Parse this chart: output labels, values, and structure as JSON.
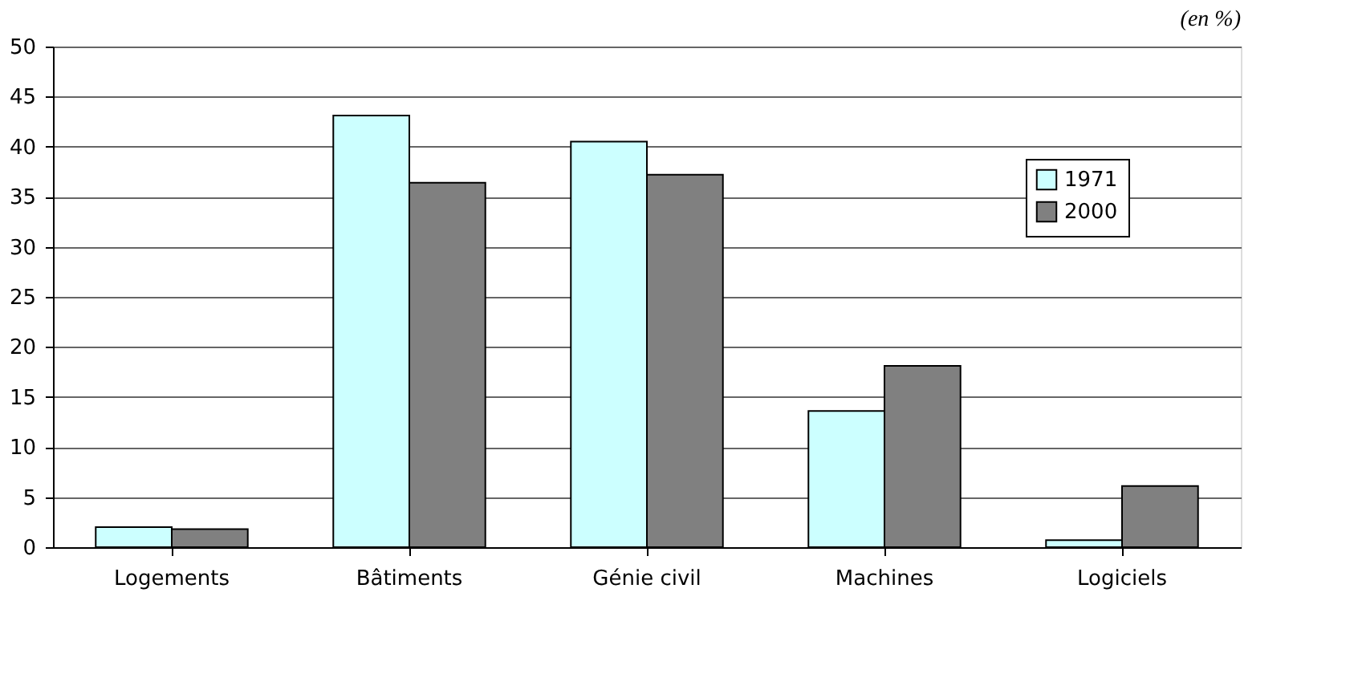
{
  "chart_data": {
    "type": "bar",
    "annotations": [
      "(en %)"
    ],
    "categories": [
      "Logements",
      "Bâtiments",
      "Génie civil",
      "Machines",
      "Logiciels"
    ],
    "series": [
      {
        "name": "1971",
        "color": "#ccffff",
        "values": [
          2.0,
          43.1,
          40.5,
          13.6,
          0.7
        ]
      },
      {
        "name": "2000",
        "color": "#808080",
        "values": [
          1.8,
          36.4,
          37.2,
          18.1,
          6.1
        ]
      }
    ],
    "ylim": [
      0,
      50
    ],
    "yticks": [
      0,
      5,
      10,
      15,
      20,
      25,
      30,
      35,
      40,
      45,
      50
    ],
    "grid": "y",
    "legend": "top right"
  }
}
